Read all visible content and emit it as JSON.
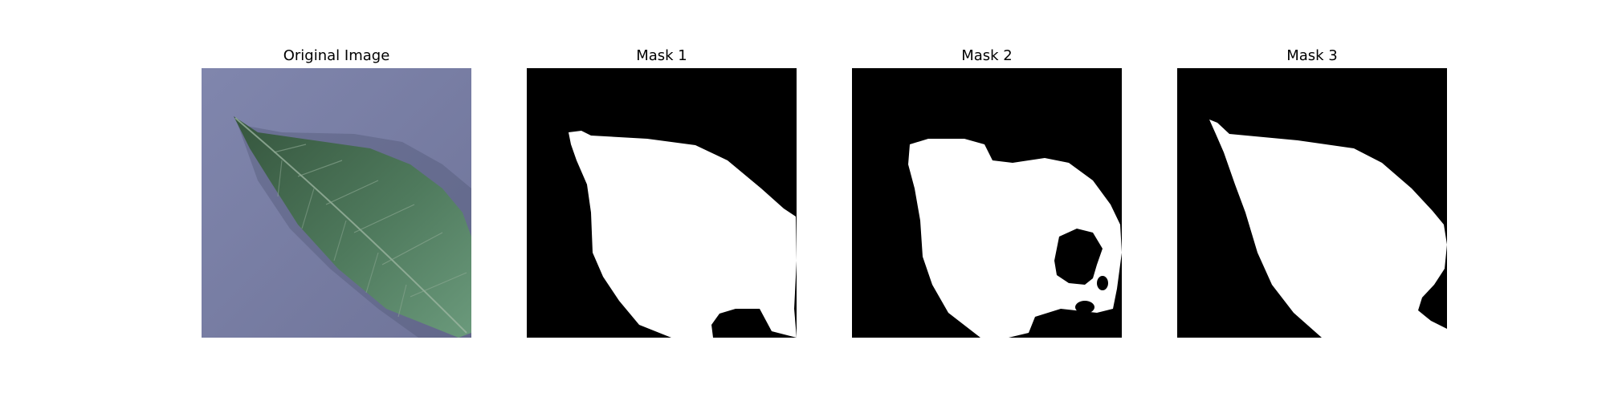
{
  "figure": {
    "panels": [
      {
        "id": "original",
        "title": "Original Image"
      },
      {
        "id": "mask-1",
        "title": "Mask 1"
      },
      {
        "id": "mask-2",
        "title": "Mask 2"
      },
      {
        "id": "mask-3",
        "title": "Mask 3"
      }
    ]
  },
  "colors": {
    "background": "#7a7fa8",
    "leaf_dark": "#2f4a35",
    "leaf_light": "#5f8a6c",
    "mask_foreground": "#ffffff",
    "mask_background": "#000000"
  }
}
